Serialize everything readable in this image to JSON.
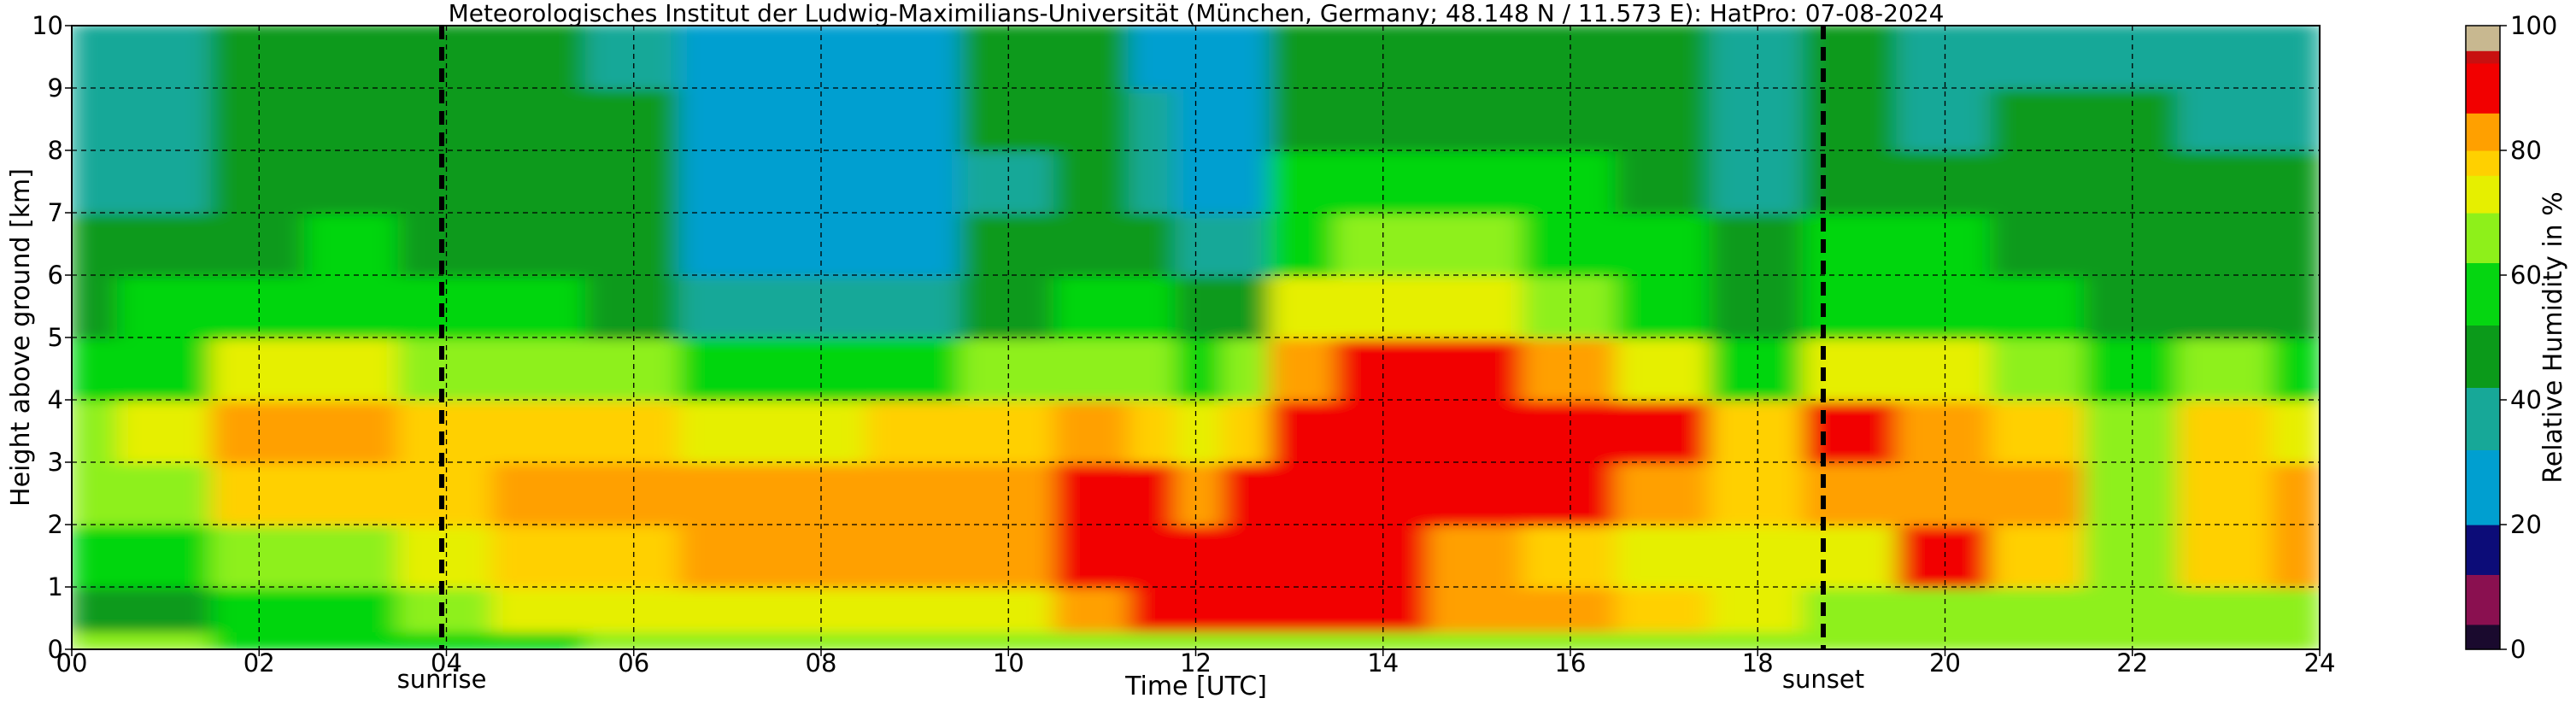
{
  "chart_data": {
    "type": "heatmap",
    "title": "Meteorologisches Institut der Ludwig-Maximilians-Universität (München, Germany; 48.148 N / 11.573 E):    HatPro: 07-08-2024",
    "xlabel": "Time [UTC]",
    "ylabel": "Height above ground [km]",
    "colorbar_label": "Relative Humidity in %",
    "xlim": [
      0,
      24
    ],
    "ylim": [
      0,
      10
    ],
    "x_ticks": [
      0,
      2,
      4,
      6,
      8,
      10,
      12,
      14,
      16,
      18,
      20,
      22,
      24
    ],
    "x_tick_labels": [
      "00",
      "02",
      "04",
      "06",
      "08",
      "10",
      "12",
      "14",
      "16",
      "18",
      "20",
      "22",
      "24"
    ],
    "y_ticks": [
      0,
      1,
      2,
      3,
      4,
      5,
      6,
      7,
      8,
      9,
      10
    ],
    "y_tick_labels": [
      "0",
      "1",
      "2",
      "3",
      "4",
      "5",
      "6",
      "7",
      "8",
      "9",
      "10"
    ],
    "colorbar_ticks": [
      0,
      20,
      40,
      60,
      80,
      100
    ],
    "colorbar_tick_labels": [
      "0",
      "20",
      "40",
      "60",
      "80",
      "100"
    ],
    "grid": true,
    "annotations": [
      {
        "label": "sunrise",
        "x": 3.95
      },
      {
        "label": "sunset",
        "x": 18.7
      }
    ],
    "colormap": [
      {
        "from": 0,
        "to": 4,
        "color": "#1a0a2e"
      },
      {
        "from": 4,
        "to": 12,
        "color": "#8a1050"
      },
      {
        "from": 12,
        "to": 20,
        "color": "#0c0c78"
      },
      {
        "from": 20,
        "to": 32,
        "color": "#009fd0"
      },
      {
        "from": 32,
        "to": 42,
        "color": "#17a898"
      },
      {
        "from": 42,
        "to": 52,
        "color": "#0b9a1a"
      },
      {
        "from": 52,
        "to": 62,
        "color": "#05d611"
      },
      {
        "from": 62,
        "to": 70,
        "color": "#8ef01a"
      },
      {
        "from": 70,
        "to": 76,
        "color": "#e6ef00"
      },
      {
        "from": 76,
        "to": 80,
        "color": "#ffd000"
      },
      {
        "from": 80,
        "to": 86,
        "color": "#ffa000"
      },
      {
        "from": 86,
        "to": 94,
        "color": "#f20000"
      },
      {
        "from": 94,
        "to": 96,
        "color": "#c81010"
      },
      {
        "from": 96,
        "to": 100,
        "color": "#c8b890"
      }
    ],
    "time_columns_utc": [
      0,
      1,
      2,
      3,
      4,
      5,
      6,
      7,
      8,
      9,
      10,
      11,
      11.6,
      12,
      12.6,
      13,
      14,
      15,
      16,
      17,
      18,
      19,
      20,
      21,
      22,
      23,
      24
    ],
    "height_rows_km": [
      0.1,
      0.5,
      1.5,
      2.5,
      3.5,
      4.5,
      5.5,
      6.5,
      7.5,
      8.5,
      9.5
    ],
    "rh_values": [
      [
        62,
        62,
        58,
        58,
        60,
        60,
        62,
        64,
        64,
        64,
        64,
        64,
        64,
        64,
        64,
        66,
        66,
        66,
        66,
        66,
        66,
        66,
        66,
        66,
        66,
        66,
        66
      ],
      [
        50,
        50,
        58,
        60,
        66,
        70,
        72,
        72,
        72,
        74,
        74,
        84,
        90,
        86,
        92,
        90,
        86,
        84,
        80,
        76,
        70,
        64,
        62,
        64,
        66,
        64,
        64
      ],
      [
        56,
        56,
        62,
        64,
        72,
        76,
        78,
        80,
        82,
        80,
        84,
        88,
        92,
        86,
        92,
        90,
        86,
        82,
        78,
        74,
        70,
        72,
        88,
        76,
        64,
        78,
        84
      ],
      [
        62,
        64,
        76,
        76,
        78,
        80,
        82,
        80,
        80,
        80,
        82,
        86,
        90,
        84,
        92,
        90,
        88,
        90,
        88,
        80,
        76,
        84,
        84,
        80,
        68,
        78,
        80
      ],
      [
        68,
        70,
        80,
        82,
        76,
        78,
        78,
        74,
        74,
        76,
        78,
        80,
        78,
        70,
        76,
        88,
        90,
        88,
        90,
        88,
        78,
        86,
        80,
        76,
        64,
        76,
        70
      ],
      [
        56,
        60,
        70,
        72,
        66,
        68,
        64,
        54,
        54,
        58,
        62,
        64,
        62,
        56,
        66,
        84,
        86,
        88,
        82,
        72,
        60,
        70,
        70,
        64,
        56,
        62,
        56
      ],
      [
        50,
        52,
        58,
        58,
        56,
        56,
        50,
        34,
        34,
        40,
        48,
        54,
        56,
        48,
        50,
        70,
        74,
        72,
        66,
        58,
        50,
        58,
        60,
        52,
        50,
        50,
        48
      ],
      [
        44,
        46,
        50,
        52,
        50,
        50,
        44,
        28,
        28,
        30,
        42,
        48,
        42,
        34,
        36,
        60,
        66,
        62,
        58,
        52,
        44,
        52,
        52,
        48,
        46,
        46,
        44
      ],
      [
        40,
        38,
        48,
        50,
        48,
        48,
        44,
        26,
        28,
        30,
        40,
        48,
        36,
        28,
        30,
        52,
        56,
        54,
        52,
        48,
        40,
        48,
        46,
        44,
        44,
        44,
        42
      ],
      [
        36,
        36,
        46,
        48,
        46,
        46,
        42,
        26,
        26,
        28,
        42,
        46,
        32,
        24,
        26,
        48,
        50,
        50,
        48,
        46,
        38,
        46,
        40,
        42,
        42,
        40,
        40
      ],
      [
        34,
        34,
        44,
        46,
        44,
        44,
        40,
        26,
        26,
        28,
        42,
        46,
        30,
        24,
        24,
        44,
        48,
        46,
        46,
        44,
        36,
        44,
        38,
        40,
        40,
        38,
        38
      ]
    ]
  }
}
